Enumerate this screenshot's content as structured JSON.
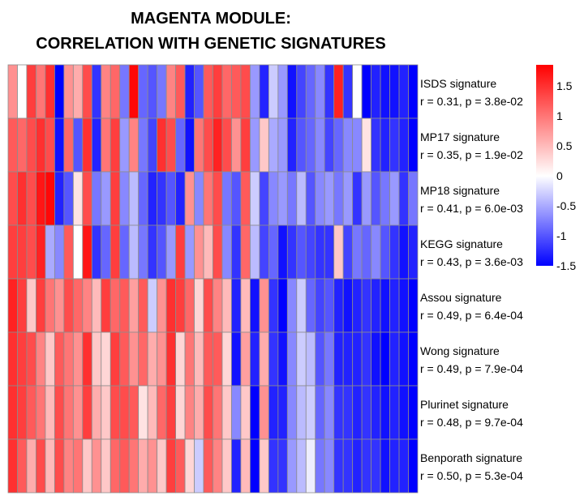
{
  "title_line1": "MAGENTA MODULE:",
  "title_line2": "CORRELATION WITH GENETIC SIGNATURES",
  "chart_data": {
    "type": "heatmap",
    "title": "MAGENTA MODULE: CORRELATION WITH GENETIC SIGNATURES",
    "rows": [
      {
        "name": "ISDS signature",
        "stat": "r = 0.31, p = 3.8e-02"
      },
      {
        "name": "MP17 signature",
        "stat": "r = 0.35, p = 1.9e-02"
      },
      {
        "name": "MP18 signature",
        "stat": "r = 0.41, p = 6.0e-03"
      },
      {
        "name": "KEGG signature",
        "stat": "r = 0.43, p = 3.6e-03"
      },
      {
        "name": "Assou signature",
        "stat": "r = 0.49, p = 6.4e-04"
      },
      {
        "name": "Wong signature",
        "stat": "r = 0.49, p = 7.9e-04"
      },
      {
        "name": "Plurinet signature",
        "stat": "r = 0.48, p = 9.7e-04"
      },
      {
        "name": "Benporath signature",
        "stat": "r = 0.50, p = 5.3e-04"
      }
    ],
    "n_columns": 44,
    "values": [
      [
        0.8,
        0.0,
        1.4,
        1.0,
        1.5,
        -1.5,
        0.8,
        0.6,
        1.3,
        -1.2,
        0.9,
        1.1,
        -0.8,
        1.8,
        -0.9,
        -1.0,
        -0.8,
        0.9,
        1.2,
        -1.3,
        -1.0,
        1.2,
        1.4,
        1.1,
        1.2,
        1.3,
        -0.6,
        -1.3,
        -0.3,
        -0.6,
        -1.4,
        -1.1,
        -0.9,
        -0.7,
        -1.2,
        1.6,
        -1.2,
        0.0,
        -1.5,
        -1.3,
        -1.4,
        -1.4,
        -1.3,
        -1.5
      ],
      [
        1.2,
        1.1,
        1.3,
        1.5,
        1.3,
        -1.4,
        1.1,
        -1.0,
        1.5,
        -1.3,
        1.0,
        1.4,
        -0.6,
        0.9,
        -0.8,
        -1.1,
        1.5,
        1.3,
        -0.9,
        -1.4,
        1.0,
        1.3,
        1.6,
        1.3,
        0.8,
        1.4,
        -0.6,
        0.4,
        -0.5,
        -0.6,
        -1.3,
        -1.0,
        -0.9,
        -0.7,
        -1.1,
        -0.9,
        -0.7,
        -0.7,
        0.2,
        -1.2,
        -1.3,
        -1.2,
        -1.3,
        -1.5
      ],
      [
        1.3,
        1.5,
        1.3,
        1.7,
        1.8,
        -1.3,
        -1.0,
        0.2,
        1.3,
        -0.8,
        -0.6,
        1.4,
        -0.7,
        -0.4,
        -0.9,
        -1.3,
        -1.2,
        -1.0,
        -1.3,
        0.8,
        -0.7,
        1.0,
        1.3,
        -0.8,
        -1.0,
        1.2,
        -0.3,
        -1.1,
        -0.7,
        -0.6,
        -0.8,
        -0.4,
        -1.0,
        -0.7,
        -0.6,
        -0.8,
        -0.6,
        -1.2,
        -0.6,
        -1.0,
        -0.8,
        -0.6,
        -1.2,
        -0.8
      ],
      [
        1.4,
        1.4,
        1.3,
        1.6,
        -0.5,
        -0.7,
        1.2,
        0.0,
        1.7,
        -1.2,
        -0.9,
        1.4,
        -0.9,
        -0.4,
        -0.8,
        -1.2,
        -1.0,
        -0.6,
        1.4,
        -0.6,
        0.8,
        0.5,
        1.3,
        -0.7,
        -1.2,
        1.1,
        -0.4,
        -1.1,
        -0.9,
        -1.4,
        -1.2,
        -1.0,
        -1.1,
        -1.2,
        -1.2,
        0.4,
        -1.1,
        -0.8,
        -0.9,
        -0.7,
        -1.0,
        -1.2,
        -1.4,
        -1.3
      ],
      [
        1.6,
        1.4,
        0.4,
        1.4,
        1.0,
        0.8,
        1.3,
        1.1,
        0.9,
        0.5,
        1.4,
        1.1,
        1.2,
        0.7,
        1.2,
        -0.3,
        0.8,
        1.5,
        1.4,
        1.1,
        0.3,
        1.3,
        0.9,
        0.5,
        -1.3,
        0.5,
        -1.4,
        0.8,
        -1.2,
        -1.5,
        -0.7,
        -0.3,
        -0.9,
        -1.1,
        -1.0,
        -1.3,
        -1.4,
        -1.3,
        -1.2,
        -1.3,
        -1.4,
        -1.3,
        -1.4,
        -1.5
      ],
      [
        1.5,
        1.4,
        1.3,
        0.9,
        0.4,
        1.2,
        1.0,
        0.8,
        1.5,
        0.4,
        0.3,
        1.4,
        1.2,
        0.8,
        1.1,
        0.6,
        0.8,
        1.5,
        0.3,
        1.0,
        0.5,
        1.2,
        1.2,
        0.3,
        -1.4,
        0.7,
        -1.3,
        0.6,
        -1.2,
        -1.4,
        -0.7,
        -0.3,
        -0.4,
        -1.0,
        -0.8,
        -1.3,
        -1.3,
        -1.3,
        -1.2,
        -1.4,
        -1.5,
        -1.3,
        -1.4,
        -1.5
      ],
      [
        1.5,
        1.4,
        1.2,
        1.0,
        0.5,
        1.3,
        1.0,
        0.8,
        1.4,
        0.6,
        0.4,
        1.3,
        1.3,
        1.2,
        0.2,
        0.5,
        1.1,
        1.4,
        0.3,
        0.9,
        0.6,
        1.3,
        1.0,
        0.4,
        -0.7,
        0.4,
        -1.5,
        0.8,
        -1.3,
        -1.3,
        -0.7,
        -0.4,
        -0.3,
        -0.9,
        -0.7,
        -1.2,
        -1.2,
        -1.3,
        -1.2,
        -1.3,
        -1.4,
        -1.3,
        -1.4,
        -1.5
      ],
      [
        1.5,
        1.2,
        0.6,
        1.3,
        0.5,
        1.3,
        0.9,
        1.0,
        0.4,
        0.8,
        0.4,
        1.1,
        1.2,
        1.0,
        0.6,
        0.8,
        0.4,
        1.4,
        1.2,
        0.3,
        -0.3,
        1.2,
        0.9,
        0.4,
        -1.3,
        0.5,
        -1.5,
        0.4,
        -1.2,
        -1.2,
        -0.6,
        -0.4,
        -0.1,
        -0.8,
        -0.7,
        -1.2,
        -1.2,
        -1.3,
        -1.2,
        -1.2,
        -1.4,
        -1.3,
        -1.3,
        -1.5
      ]
    ],
    "color_scale": {
      "low": "#0000ff",
      "mid": "#ffffff",
      "high": "#ff0000",
      "min": -1.5,
      "max": 1.85
    },
    "colorbar_ticks": [
      "1.5",
      "1",
      "0.5",
      "0",
      "-0.5",
      "-1",
      "-1.5"
    ],
    "colorbar_tick_values": [
      1.5,
      1,
      0.5,
      0,
      -0.5,
      -1,
      -1.5
    ],
    "grid": true
  }
}
